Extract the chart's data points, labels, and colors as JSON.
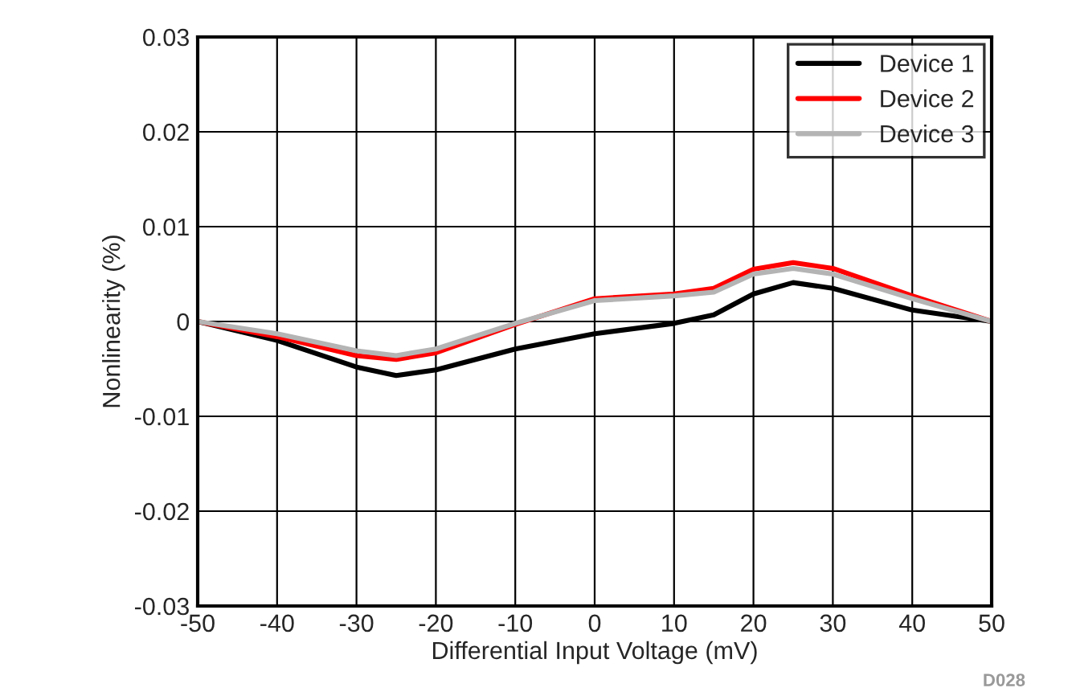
{
  "chart_data": {
    "type": "line",
    "xlabel": "Differential Input Voltage (mV)",
    "ylabel": "Nonlinearity (%)",
    "x": [
      -50,
      -40,
      -30,
      -25,
      -20,
      -10,
      0,
      10,
      15,
      20,
      25,
      30,
      40,
      50
    ],
    "series": [
      {
        "name": "Device 1",
        "color": "#000000",
        "values": [
          0,
          -0.002,
          -0.0048,
          -0.0057,
          -0.0051,
          -0.0029,
          -0.0013,
          -0.0002,
          0.0007,
          0.0029,
          0.0041,
          0.0035,
          0.0012,
          0
        ]
      },
      {
        "name": "Device 2",
        "color": "#ff0000",
        "values": [
          0,
          -0.0016,
          -0.0036,
          -0.004,
          -0.0033,
          -0.0003,
          0.0024,
          0.0029,
          0.0035,
          0.0055,
          0.0062,
          0.0056,
          0.0027,
          0
        ]
      },
      {
        "name": "Device 3",
        "color": "#b4b4b4",
        "values": [
          0,
          -0.0013,
          -0.0031,
          -0.0036,
          -0.0029,
          -0.0002,
          0.0022,
          0.0027,
          0.0031,
          0.005,
          0.0056,
          0.005,
          0.0024,
          0
        ]
      }
    ],
    "xlim": [
      -50,
      50
    ],
    "ylim": [
      -0.03,
      0.03
    ],
    "xticks": [
      {
        "value": -50,
        "label": "-50"
      },
      {
        "value": -40,
        "label": "-40"
      },
      {
        "value": -30,
        "label": "-30"
      },
      {
        "value": -20,
        "label": "-20"
      },
      {
        "value": -10,
        "label": "-10"
      },
      0,
      10,
      20,
      30,
      40,
      50
    ],
    "yticks": [
      {
        "value": -0.03,
        "label": "-0.03"
      },
      {
        "value": -0.02,
        "label": "-0.02"
      },
      {
        "value": -0.01,
        "label": "-0.01"
      },
      0,
      0.01,
      0.02,
      0.03
    ],
    "grid": true,
    "legend": "top right",
    "line_style": "solid",
    "marker": "none",
    "annotations": [
      "D028"
    ]
  }
}
